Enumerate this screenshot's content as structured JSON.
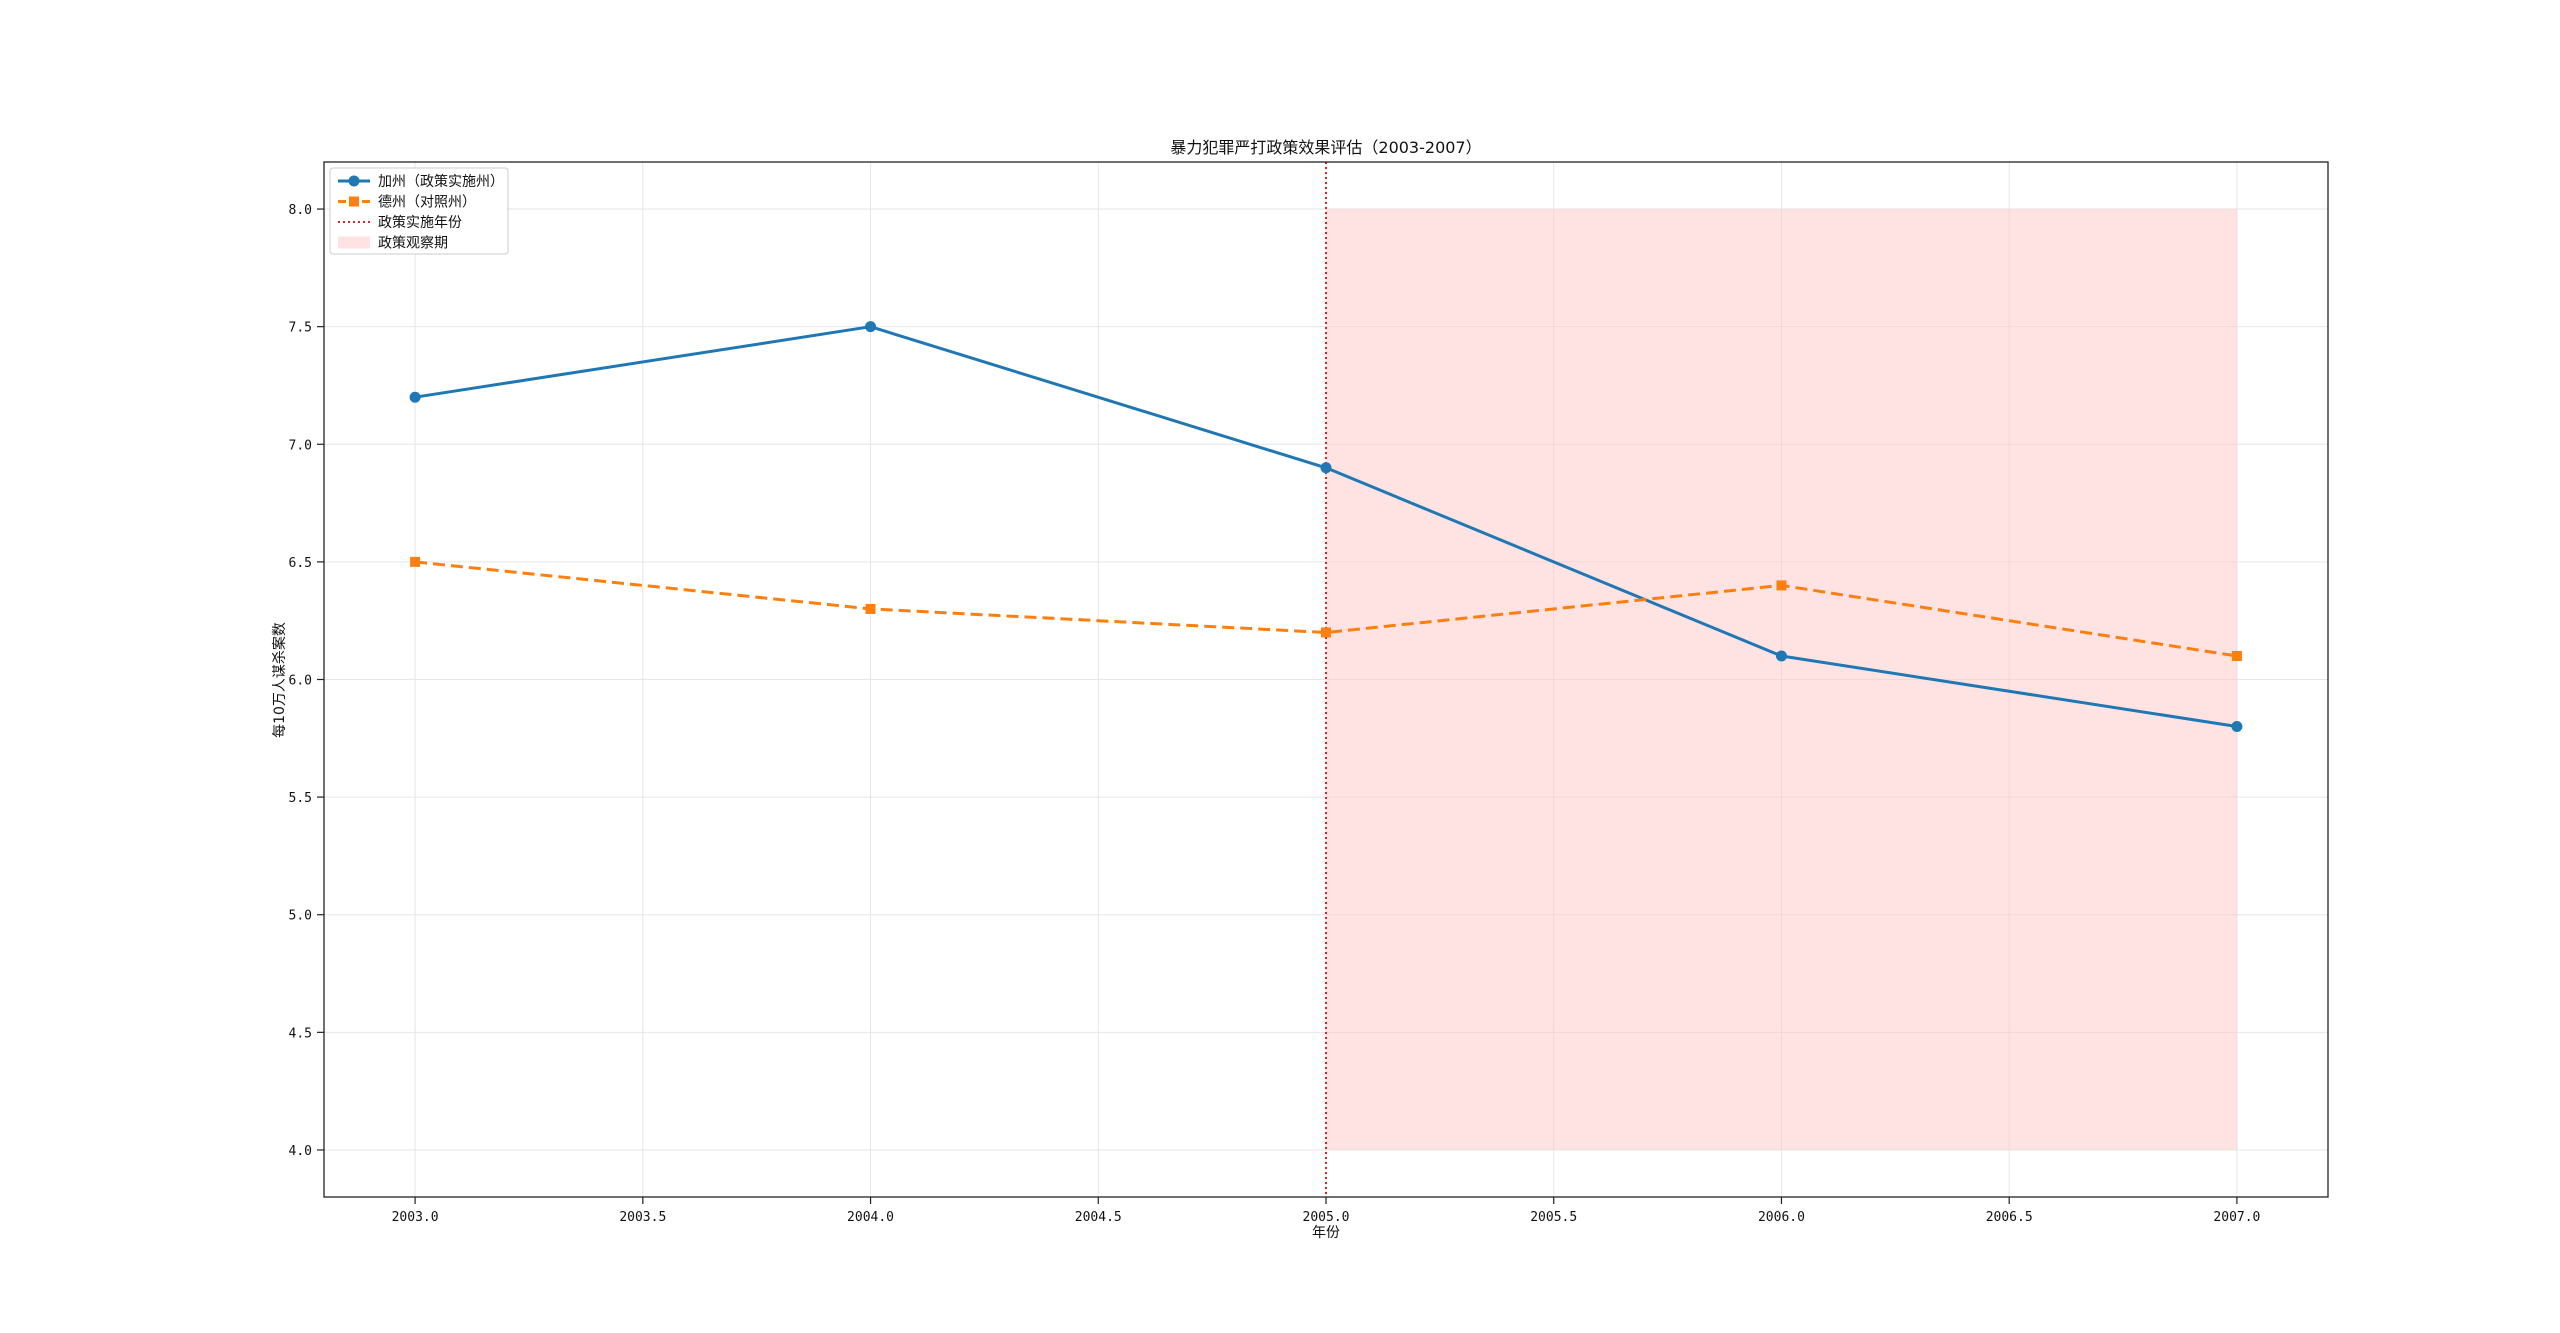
{
  "chart_data": {
    "type": "line",
    "title": "暴力犯罪严打政策效果评估（2003-2007）",
    "xlabel": "年份",
    "ylabel": "每10万人谋杀案数",
    "x": [
      2003,
      2004,
      2005,
      2006,
      2007
    ],
    "xlim": [
      2002.8,
      2007.2
    ],
    "ylim": [
      3.8,
      8.2
    ],
    "xticks": [
      2003.0,
      2003.5,
      2004.0,
      2004.5,
      2005.0,
      2005.5,
      2006.0,
      2006.5,
      2007.0
    ],
    "xtick_labels": [
      "2003.0",
      "2003.5",
      "2004.0",
      "2004.5",
      "2005.0",
      "2005.5",
      "2006.0",
      "2006.5",
      "2007.0"
    ],
    "yticks": [
      4.0,
      4.5,
      5.0,
      5.5,
      6.0,
      6.5,
      7.0,
      7.5,
      8.0
    ],
    "ytick_labels": [
      "4.0",
      "4.5",
      "5.0",
      "5.5",
      "6.0",
      "6.5",
      "7.0",
      "7.5",
      "8.0"
    ],
    "grid": true,
    "legend_position": "top-left",
    "series": [
      {
        "name": "加州（政策实施州）",
        "values": [
          7.2,
          7.5,
          6.9,
          6.1,
          5.8
        ],
        "color": "#1f77b4",
        "line_style": "solid",
        "marker": "circle"
      },
      {
        "name": "德州（对照州）",
        "values": [
          6.5,
          6.3,
          6.2,
          6.4,
          6.1
        ],
        "color": "#ff7f0e",
        "line_style": "dashed",
        "marker": "square"
      }
    ],
    "reference_line": {
      "name": "政策实施年份",
      "x": 2005,
      "color": "#d62728",
      "line_style": "dotted"
    },
    "shaded_region": {
      "name": "政策观察期",
      "x_range": [
        2005,
        2007
      ],
      "y_range": [
        4.0,
        8.0
      ],
      "color": "#ffc8c8"
    }
  }
}
